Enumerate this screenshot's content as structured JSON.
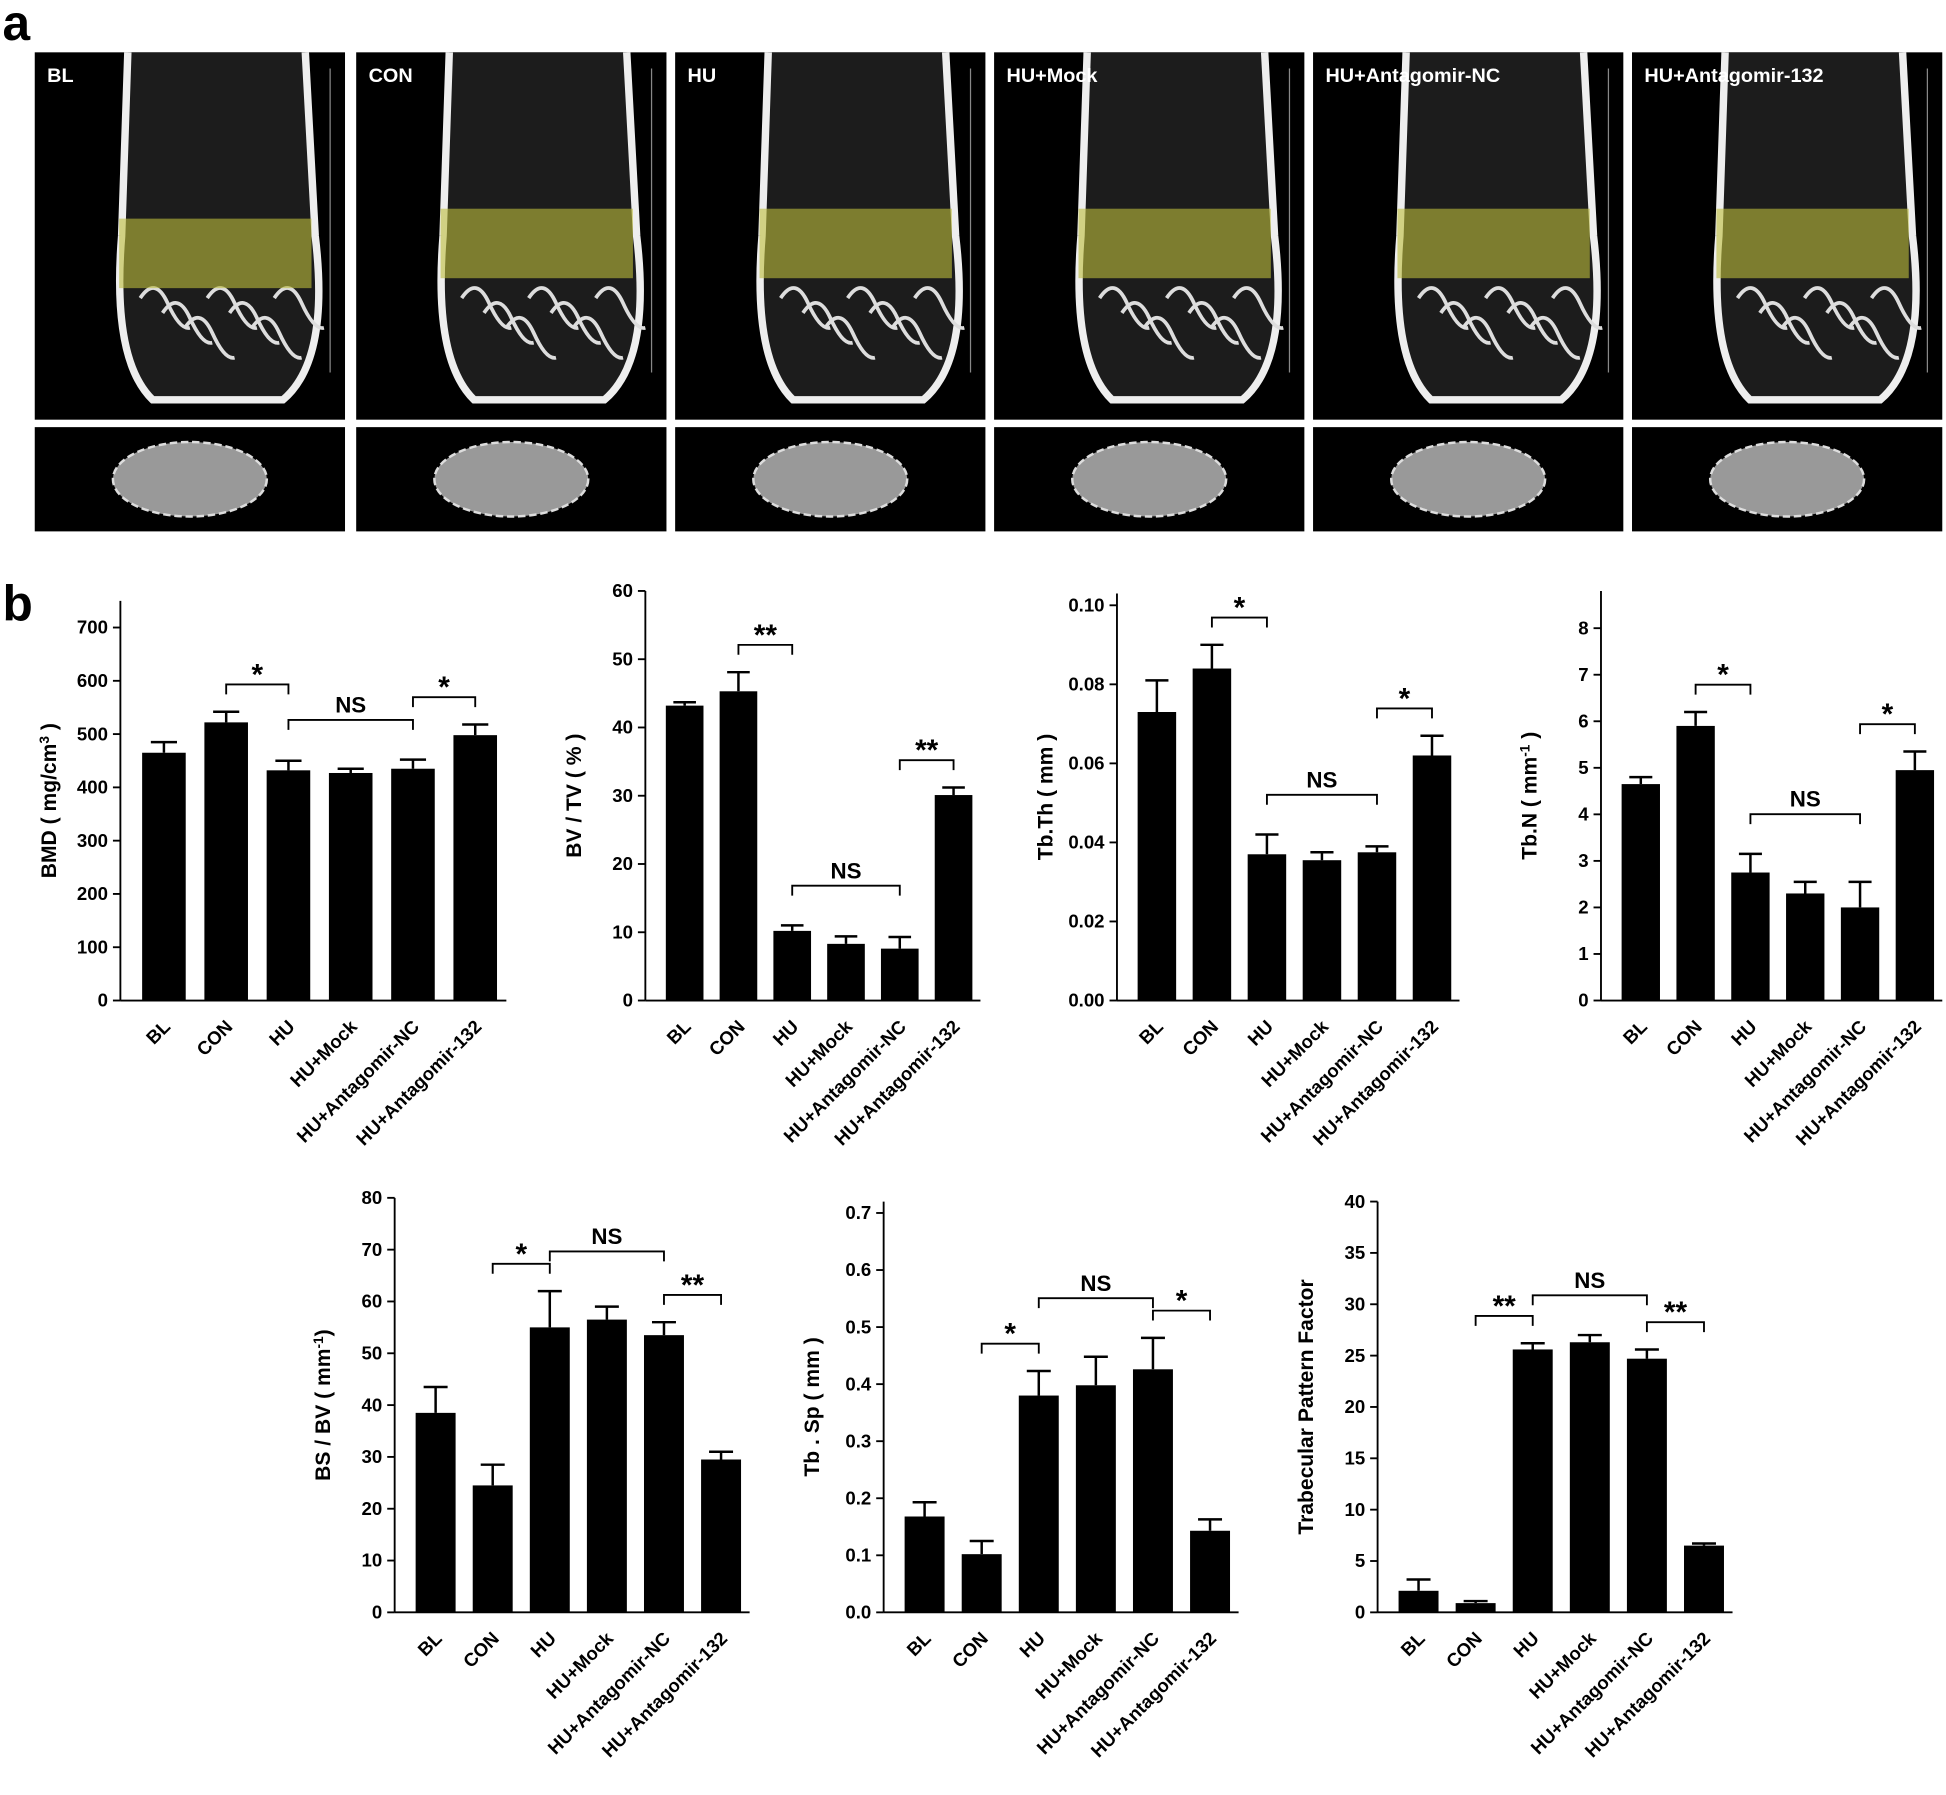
{
  "panel_a": {
    "letter": "a",
    "labels": [
      "BL",
      "CON",
      "HU",
      "HU+Mock",
      "HU+Antagomir-NC",
      "HU+Antagomir-132"
    ]
  },
  "panel_b_letter": "b",
  "chart_data": [
    {
      "type": "bar",
      "ylabel": [
        {
          "text": "BMD ( mg/cm"
        },
        {
          "text": "3",
          "sup": true
        },
        {
          "text": " )"
        }
      ],
      "categories": [
        "BL",
        "CON",
        "HU",
        "HU+Mock",
        "HU+Antagomir-NC",
        "HU+Antagomir-132"
      ],
      "values": [
        465,
        522,
        432,
        427,
        435,
        498
      ],
      "errors": [
        20,
        20,
        18,
        8,
        17,
        20
      ],
      "color": "#000000",
      "ylim": [
        0,
        750
      ],
      "yticks": [
        0,
        100,
        200,
        300,
        400,
        500,
        600,
        700
      ],
      "brackets": [
        {
          "text": "*",
          "span": [
            "CON",
            "HU"
          ]
        },
        {
          "text": "NS",
          "span": [
            "HU",
            "HU+Antagomir-NC"
          ]
        },
        {
          "text": "*",
          "span": [
            "HU+Antagomir-NC",
            "HU+Antagomir-132"
          ]
        }
      ]
    },
    {
      "type": "bar",
      "ylabel": [
        {
          "text": "BV / TV ( % )"
        }
      ],
      "categories": [
        "BL",
        "CON",
        "HU",
        "HU+Mock",
        "HU+Antagomir-NC",
        "HU+Antagomir-132"
      ],
      "values": [
        43.2,
        45.3,
        10.2,
        8.3,
        7.6,
        30.1
      ],
      "errors": [
        0.5,
        2.8,
        0.8,
        1.1,
        1.7,
        1.1
      ],
      "color": "#000000",
      "ylim": [
        0,
        60
      ],
      "yticks": [
        0,
        10,
        20,
        30,
        40,
        50,
        60
      ],
      "brackets": [
        {
          "text": "**",
          "span": [
            "CON",
            "HU"
          ]
        },
        {
          "text": "NS",
          "span": [
            "HU",
            "HU+Antagomir-NC"
          ]
        },
        {
          "text": "**",
          "span": [
            "HU+Antagomir-NC",
            "HU+Antagomir-132"
          ]
        }
      ]
    },
    {
      "type": "bar",
      "ylabel": [
        {
          "text": "Tb.Th  ( mm )"
        }
      ],
      "categories": [
        "BL",
        "CON",
        "HU",
        "HU+Mock",
        "HU+Antagomir-NC",
        "HU+Antagomir-132"
      ],
      "values": [
        0.073,
        0.084,
        0.037,
        0.0355,
        0.0375,
        0.062
      ],
      "errors": [
        0.008,
        0.006,
        0.005,
        0.002,
        0.0015,
        0.005
      ],
      "color": "#000000",
      "ylim": [
        0,
        0.103
      ],
      "yticks": [
        {
          "value": 0,
          "label": "0.00"
        },
        {
          "value": 0.02,
          "label": "0.02"
        },
        {
          "value": 0.04,
          "label": "0.04"
        },
        {
          "value": 0.06,
          "label": "0.06"
        },
        {
          "value": 0.08,
          "label": "0.08"
        },
        {
          "value": 0.1,
          "label": "0.10"
        }
      ],
      "brackets": [
        {
          "text": "*",
          "span": [
            "CON",
            "HU"
          ]
        },
        {
          "text": "NS",
          "span": [
            "HU",
            "HU+Antagomir-NC"
          ]
        },
        {
          "text": "*",
          "span": [
            "HU+Antagomir-NC",
            "HU+Antagomir-132"
          ]
        }
      ]
    },
    {
      "type": "bar",
      "ylabel": [
        {
          "text": "Tb.N ( mm"
        },
        {
          "text": "-1",
          "sup": true
        },
        {
          "text": " )"
        }
      ],
      "categories": [
        "BL",
        "CON",
        "HU",
        "HU+Mock",
        "HU+Antagomir-NC",
        "HU+Antagomir-132"
      ],
      "values": [
        4.65,
        5.9,
        2.75,
        2.3,
        2.0,
        4.95
      ],
      "errors": [
        0.15,
        0.3,
        0.4,
        0.25,
        0.55,
        0.4
      ],
      "color": "#000000",
      "ylim": [
        0,
        8.8
      ],
      "yticks": [
        0,
        1,
        2,
        3,
        4,
        5,
        6,
        7,
        8
      ],
      "brackets": [
        {
          "text": "*",
          "span": [
            "CON",
            "HU"
          ]
        },
        {
          "text": "NS",
          "span": [
            "HU",
            "HU+Antagomir-NC"
          ]
        },
        {
          "text": "*",
          "span": [
            "HU+Antagomir-NC",
            "HU+Antagomir-132"
          ]
        }
      ]
    },
    {
      "type": "bar",
      "ylabel": [
        {
          "text": "BS / BV ( mm"
        },
        {
          "text": "-1",
          "sup": true
        },
        {
          "text": ")"
        }
      ],
      "categories": [
        "BL",
        "CON",
        "HU",
        "HU+Mock",
        "HU+Antagomir-NC",
        "HU+Antagomir-132"
      ],
      "values": [
        38.5,
        24.5,
        55,
        56.5,
        53.5,
        29.5
      ],
      "errors": [
        5,
        4,
        7,
        2.5,
        2.5,
        1.5
      ],
      "color": "#000000",
      "ylim": [
        0,
        80
      ],
      "yticks": [
        0,
        10,
        20,
        30,
        40,
        50,
        60,
        70,
        80
      ],
      "brackets": [
        {
          "text": "*",
          "span": [
            "CON",
            "HU"
          ]
        },
        {
          "text": "NS",
          "span": [
            "HU",
            "HU+Antagomir-NC"
          ]
        },
        {
          "text": "**",
          "span": [
            "HU+Antagomir-NC",
            "HU+Antagomir-132"
          ]
        }
      ]
    },
    {
      "type": "bar",
      "ylabel": [
        {
          "text": "Tb . Sp ( mm )"
        }
      ],
      "categories": [
        "BL",
        "CON",
        "HU",
        "HU+Mock",
        "HU+Antagomir-NC",
        "HU+Antagomir-132"
      ],
      "values": [
        0.168,
        0.102,
        0.38,
        0.398,
        0.426,
        0.143
      ],
      "errors": [
        0.025,
        0.023,
        0.043,
        0.05,
        0.055,
        0.02
      ],
      "color": "#000000",
      "ylim": [
        0,
        0.72
      ],
      "yticks": [
        {
          "value": 0,
          "label": "0.0"
        },
        0.1,
        0.2,
        0.3,
        0.4,
        0.5,
        0.6,
        0.7
      ],
      "brackets": [
        {
          "text": "*",
          "span": [
            "CON",
            "HU"
          ]
        },
        {
          "text": "NS",
          "span": [
            "HU",
            "HU+Antagomir-NC"
          ]
        },
        {
          "text": "*",
          "span": [
            "HU+Antagomir-NC",
            "HU+Antagomir-132"
          ]
        }
      ]
    },
    {
      "type": "bar",
      "ylabel": [
        {
          "text": "Trabecular Pattern Factor"
        }
      ],
      "categories": [
        "BL",
        "CON",
        "HU",
        "HU+Mock",
        "HU+Antagomir-NC",
        "HU+Antagomir-132"
      ],
      "values": [
        2.1,
        0.9,
        25.6,
        26.3,
        24.7,
        6.5
      ],
      "errors": [
        1.1,
        0.2,
        0.6,
        0.7,
        0.9,
        0.2
      ],
      "color": "#000000",
      "ylim": [
        0,
        40
      ],
      "yticks": [
        0,
        5,
        10,
        15,
        20,
        25,
        30,
        35,
        40
      ],
      "brackets": [
        {
          "text": "**",
          "span": [
            "CON",
            "HU"
          ]
        },
        {
          "text": "NS",
          "span": [
            "HU",
            "HU+Antagomir-NC"
          ]
        },
        {
          "text": "**",
          "span": [
            "HU+Antagomir-NC",
            "HU+Antagomir-132"
          ]
        }
      ]
    }
  ]
}
